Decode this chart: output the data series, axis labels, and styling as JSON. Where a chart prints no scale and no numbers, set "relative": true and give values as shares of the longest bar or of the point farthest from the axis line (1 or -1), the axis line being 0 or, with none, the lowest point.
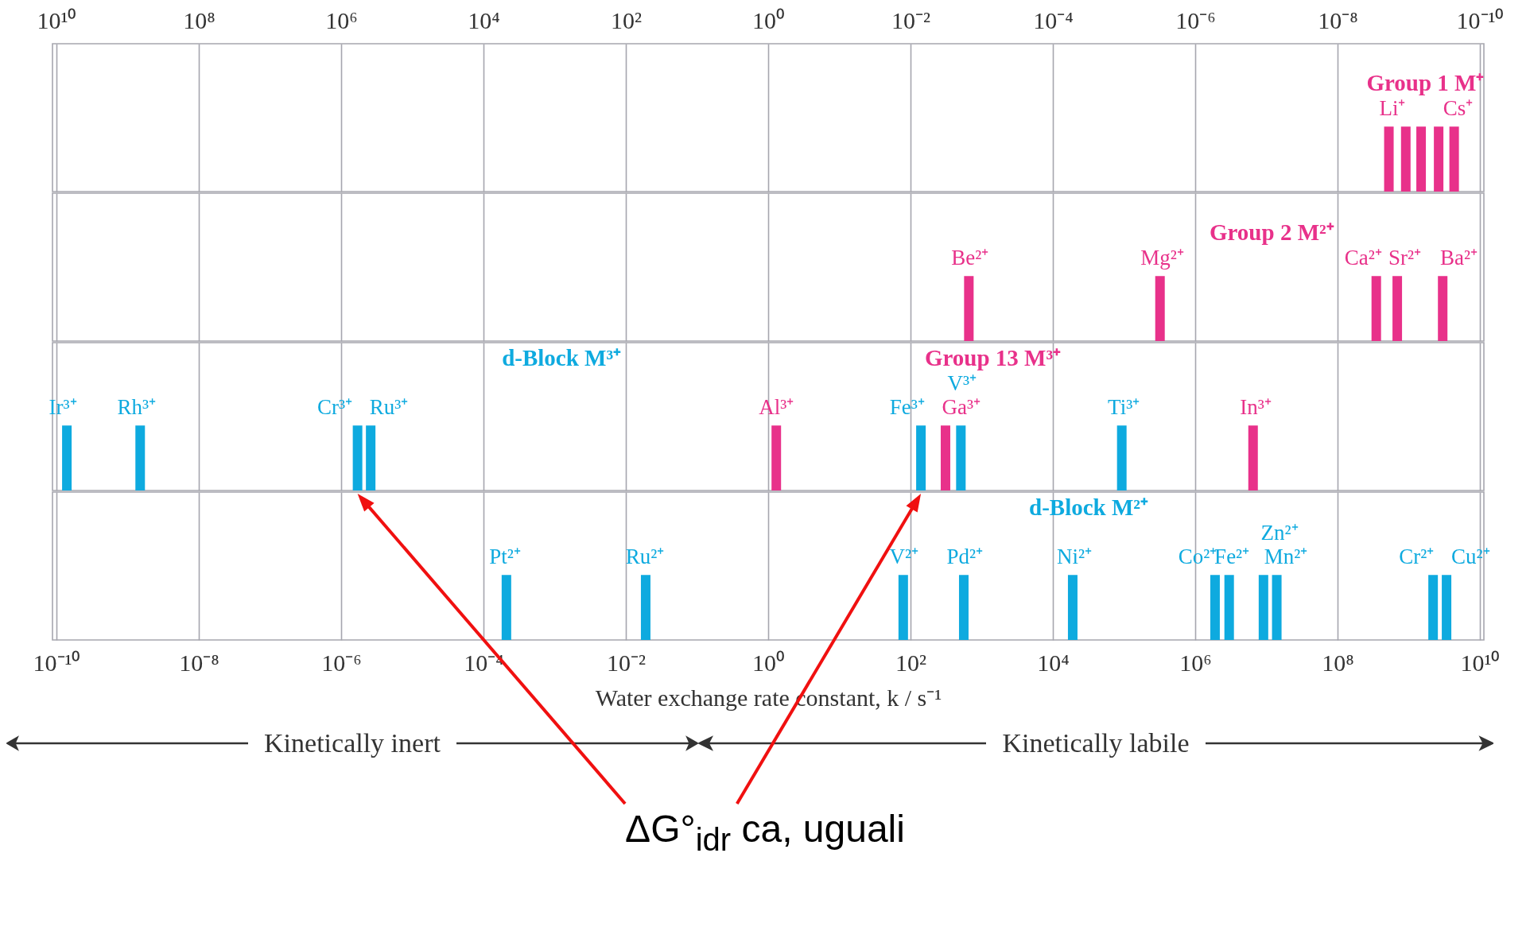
{
  "chart_data": [
    {
      "type": "bar",
      "relative": true,
      "log": "x",
      "grid": "x",
      "tick_labels": "x",
      "xlim": [
        10000000000.0,
        1e-10
      ],
      "xticks": [
        {
          "value": 10000000000.0,
          "label": "10¹⁰"
        },
        {
          "value": 100000000.0,
          "label": "10⁸"
        },
        {
          "value": 1000000.0,
          "label": "10⁶"
        },
        {
          "value": 10000.0,
          "label": "10⁴"
        },
        {
          "value": 100.0,
          "label": "10²"
        },
        {
          "value": 1,
          "label": "10⁰"
        },
        {
          "value": 0.01,
          "label": "10⁻²"
        },
        {
          "value": 0.0001,
          "label": "10⁻⁴"
        },
        {
          "value": 1e-06,
          "label": "10⁻⁶"
        },
        {
          "value": 1e-08,
          "label": "10⁻⁸"
        },
        {
          "value": 1e-10,
          "label": "10⁻¹⁰"
        }
      ],
      "series": [
        {
          "name": "Group 1 M⁺",
          "color": "#e8318a",
          "x": [
            1.9e-09,
            1.1e-09,
            6.7e-10,
            3.8e-10,
            2.3e-10
          ],
          "values": [
            1,
            1,
            1,
            1,
            1
          ]
        }
      ],
      "annotations": [
        {
          "text": "Li⁺",
          "x": 1.9e-09,
          "y": 1
        },
        {
          "text": "Cs⁺",
          "x": 2.3e-10,
          "y": 1
        }
      ]
    },
    {
      "type": "bar",
      "relative": true,
      "log": "x",
      "grid": "x",
      "tick_labels": false,
      "xlim": [
        1e-10,
        10000000000.0
      ],
      "xticks": [
        1e-10,
        1e-08,
        1e-06,
        0.0001,
        0.01,
        1,
        100.0,
        10000.0,
        1000000.0,
        100000000.0,
        10000000000.0
      ],
      "series": [
        {
          "name": "Group 2 M²⁺",
          "color": "#e8318a",
          "x": [
            660.0,
            320000.0,
            350000000.0,
            690000000.0,
            3000000000.0
          ],
          "values": [
            1,
            1,
            1,
            1,
            1
          ]
        }
      ],
      "annotations": [
        {
          "text": "Be²⁺",
          "x": 660.0,
          "y": 1
        },
        {
          "text": "Mg²⁺",
          "x": 320000.0,
          "y": 1
        },
        {
          "text": "Ca²⁺",
          "x": 350000000.0,
          "y": 1
        },
        {
          "text": "Sr²⁺",
          "x": 690000000.0,
          "y": 1
        },
        {
          "text": "Ba²⁺",
          "x": 3000000000.0,
          "y": 1
        }
      ]
    },
    {
      "type": "bar",
      "relative": true,
      "log": "x",
      "grid": "x",
      "tick_labels": false,
      "xlim": [
        1e-10,
        10000000000.0
      ],
      "xticks": [
        1e-10,
        1e-08,
        1e-06,
        0.0001,
        0.01,
        1,
        100.0,
        10000.0,
        1000000.0,
        100000000.0,
        10000000000.0
      ],
      "series": [
        {
          "name": "d-Block M³⁺",
          "color": "#0eaadf",
          "x": [
            1.4e-10,
            1.5e-09,
            1.7e-06,
            2.6e-06,
            140.0,
            510.0,
            93000.0
          ],
          "values": [
            1,
            1,
            1,
            1,
            1,
            1,
            1
          ]
        },
        {
          "name": "Group 13 M³⁺",
          "color": "#e8318a",
          "x": [
            1.3,
            310.0,
            6500000.0
          ],
          "values": [
            1,
            1,
            1
          ]
        }
      ],
      "annotations": [
        {
          "text": "Ir³⁺",
          "x": 1.4e-10,
          "y": 1
        },
        {
          "text": "Rh³⁺",
          "x": 1.5e-09,
          "y": 1
        },
        {
          "text": "Cr³⁺",
          "x": 1.7e-06,
          "y": 1
        },
        {
          "text": "Ru³⁺",
          "x": 2.6e-06,
          "y": 1
        },
        {
          "text": "Al³⁺",
          "x": 1.3,
          "y": 1
        },
        {
          "text": "Fe³⁺",
          "x": 140.0,
          "y": 1
        },
        {
          "text": "Ga³⁺",
          "x": 310.0,
          "y": 1
        },
        {
          "text": "V³⁺",
          "x": 510.0,
          "y": 1
        },
        {
          "text": "Ti³⁺",
          "x": 93000.0,
          "y": 1
        },
        {
          "text": "In³⁺",
          "x": 6500000.0,
          "y": 1
        }
      ]
    },
    {
      "type": "bar",
      "relative": true,
      "log": "x",
      "grid": "x",
      "tick_labels": "x",
      "xlabel": "Water exchange rate constant, k / s⁻¹",
      "xlim": [
        1e-10,
        10000000000.0
      ],
      "xticks": [
        {
          "value": 1e-10,
          "label": "10⁻¹⁰"
        },
        {
          "value": 1e-08,
          "label": "10⁻⁸"
        },
        {
          "value": 1e-06,
          "label": "10⁻⁶"
        },
        {
          "value": 0.0001,
          "label": "10⁻⁴"
        },
        {
          "value": 0.01,
          "label": "10⁻²"
        },
        {
          "value": 1,
          "label": "10⁰"
        },
        {
          "value": 100.0,
          "label": "10²"
        },
        {
          "value": 10000.0,
          "label": "10⁴"
        },
        {
          "value": 1000000.0,
          "label": "10⁶"
        },
        {
          "value": 100000000.0,
          "label": "10⁸"
        },
        {
          "value": 10000000000.0,
          "label": "10¹⁰"
        }
      ],
      "series": [
        {
          "name": "d-Block M²⁺",
          "color": "#0eaadf",
          "x": [
            0.00021,
            0.019,
            79.0,
            560.0,
            19000.0,
            1900000.0,
            3000000.0,
            9100000.0,
            14000000.0,
            2200000000.0,
            3400000000.0
          ],
          "values": [
            1,
            1,
            1,
            1,
            1,
            1,
            1,
            1,
            1,
            1,
            1
          ]
        }
      ],
      "annotations": [
        {
          "text": "Pt²⁺",
          "x": 0.00021,
          "y": 1
        },
        {
          "text": "Ru²⁺",
          "x": 0.019,
          "y": 1
        },
        {
          "text": "V²⁺",
          "x": 79.0,
          "y": 1
        },
        {
          "text": "Pd²⁺",
          "x": 560.0,
          "y": 1
        },
        {
          "text": "Ni²⁺",
          "x": 19000.0,
          "y": 1
        },
        {
          "text": "Co²⁺",
          "x": 1900000.0,
          "y": 1
        },
        {
          "text": "Fe²⁺",
          "x": 3000000.0,
          "y": 1
        },
        {
          "text": "Mn²⁺",
          "x": 9100000.0,
          "y": 1
        },
        {
          "text": "Zn²⁺",
          "x": 14000000.0,
          "y": 1
        },
        {
          "text": "Cr²⁺",
          "x": 2200000000.0,
          "y": 1
        },
        {
          "text": "Cu²⁺",
          "x": 3400000000.0,
          "y": 1
        },
        "Kinetically inert",
        "Kinetically labile",
        "ΔG°$_{idr}$ ca, uguali"
      ]
    }
  ]
}
